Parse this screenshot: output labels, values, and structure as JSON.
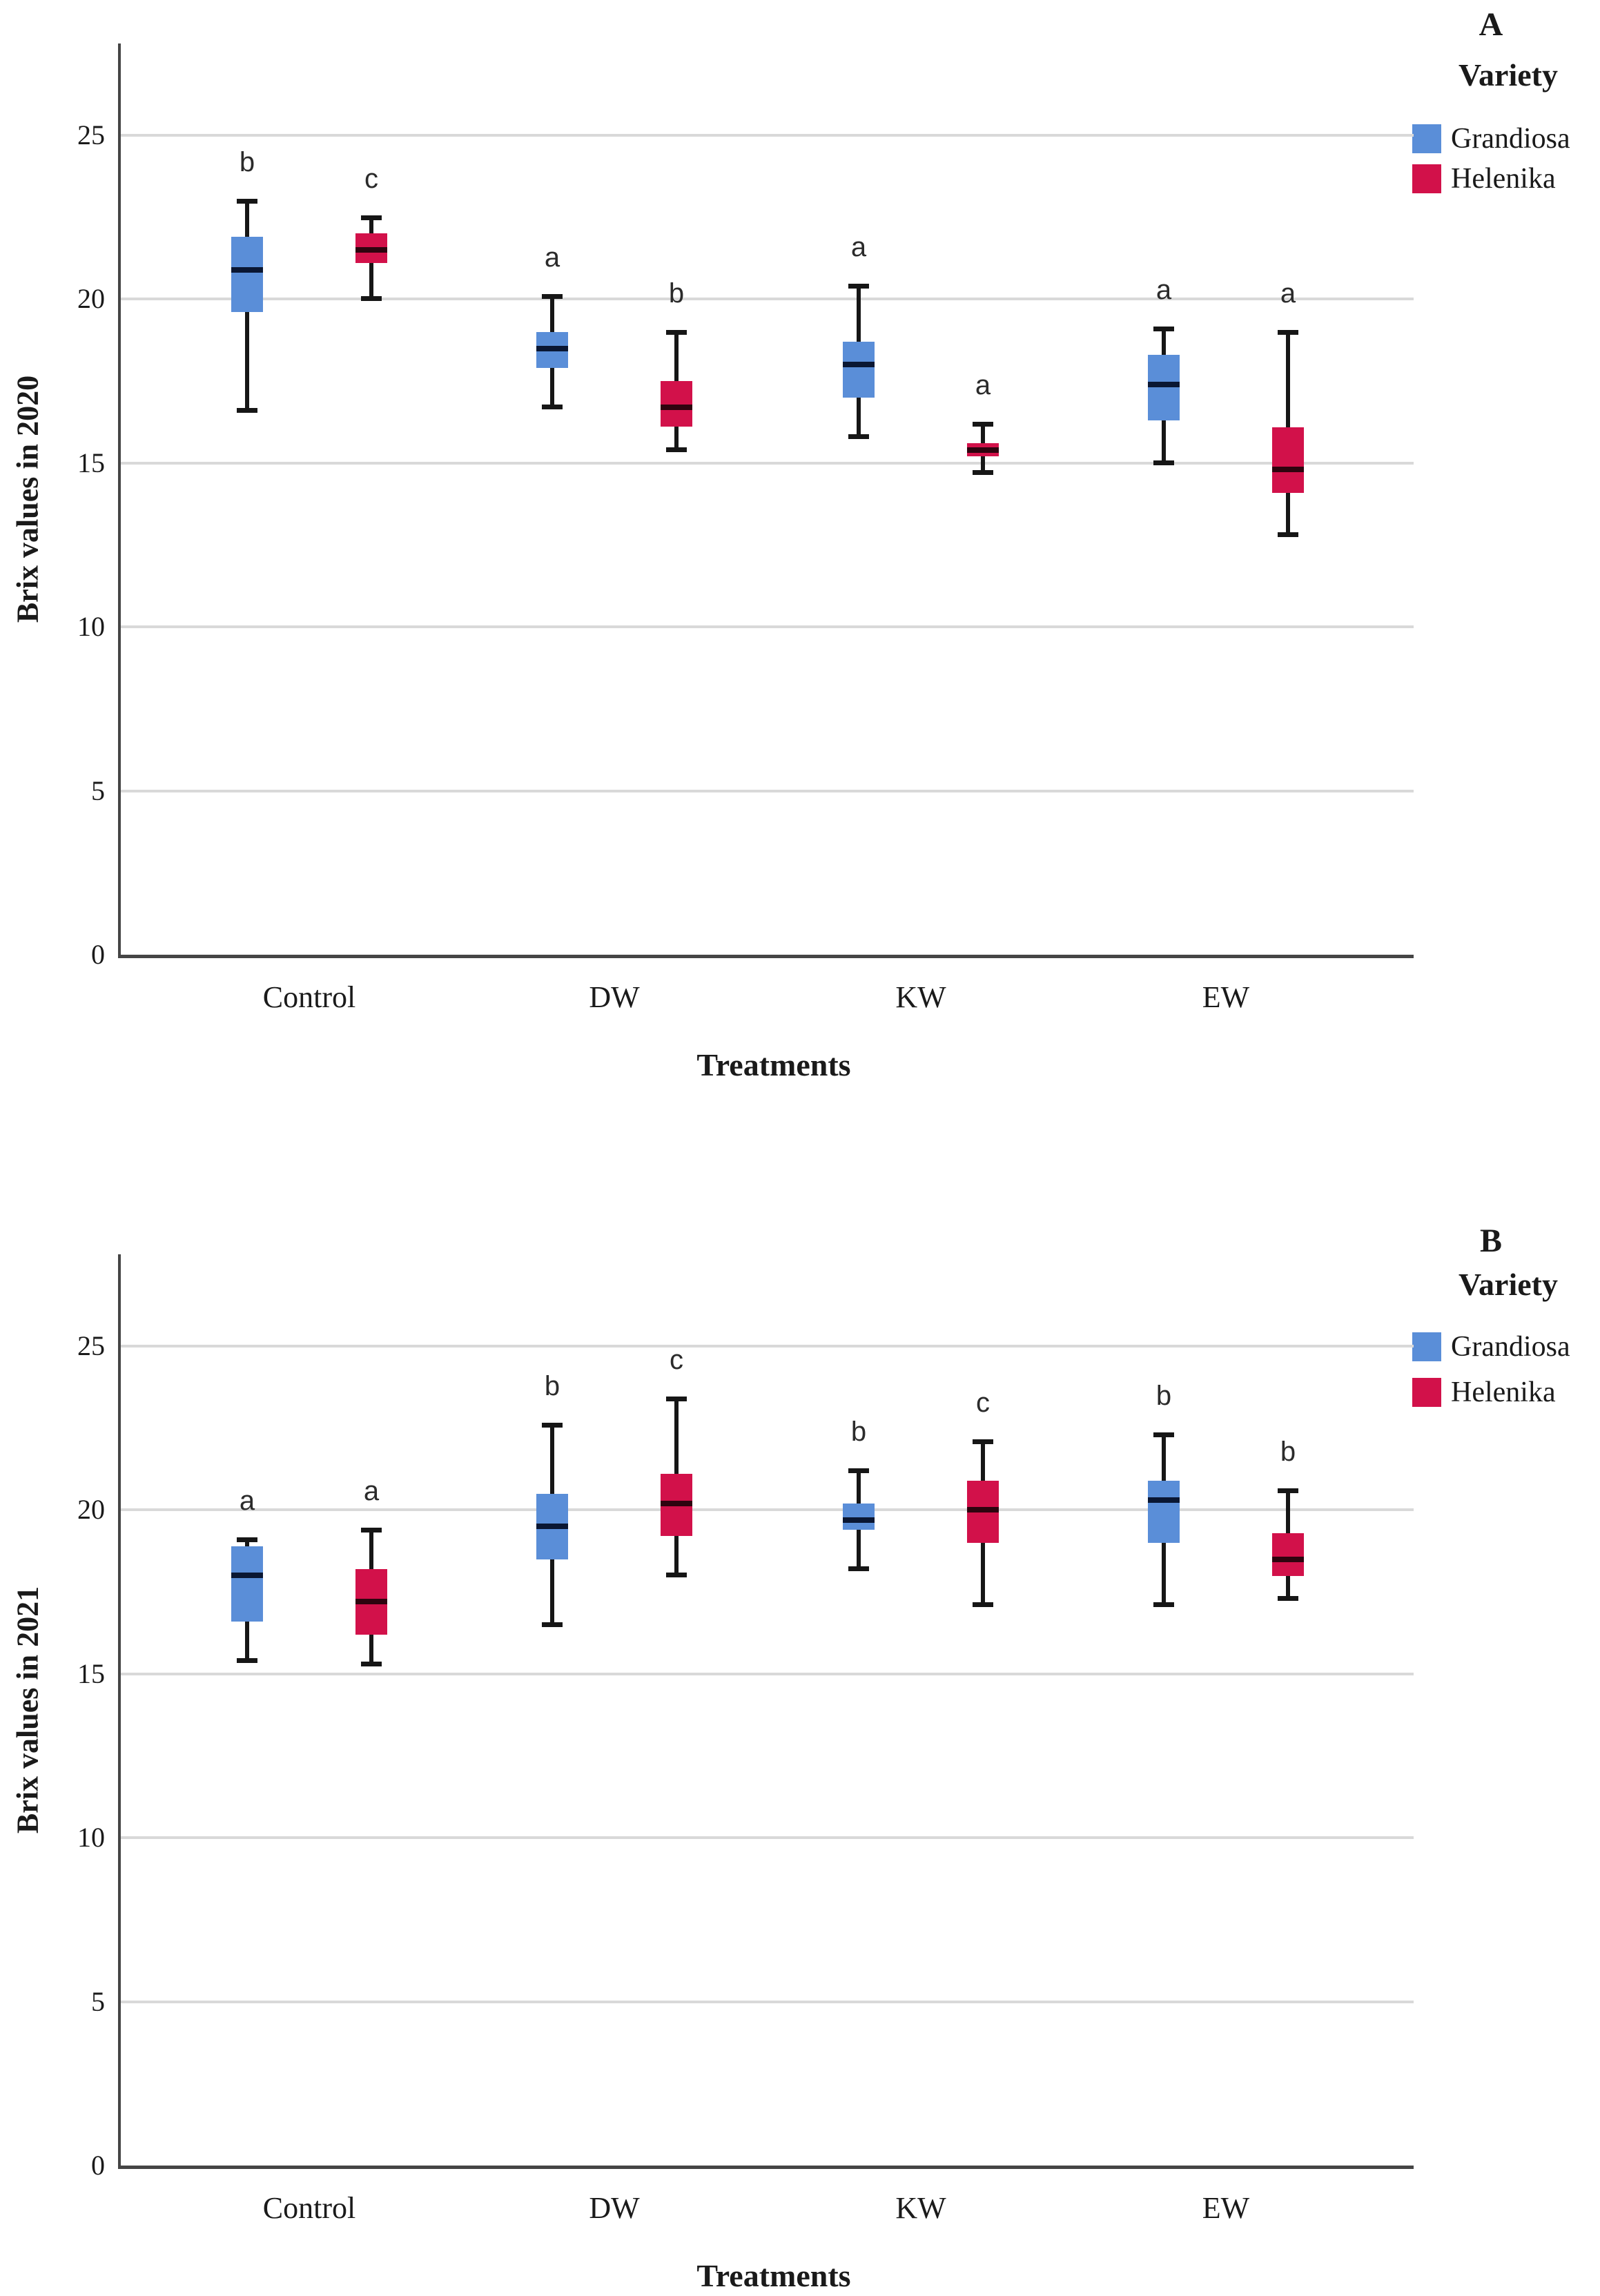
{
  "figure": {
    "background": "#ffffff"
  },
  "colors": {
    "grandiosa": "#5a8ed8",
    "helenika": "#d2114a",
    "median_on_grandiosa": "#0a1733",
    "median_on_helenika": "#2e040f",
    "whisker": "#161616",
    "gridline": "#d9d9d9",
    "axis": "#454545",
    "letter_text": "#2b2b2b"
  },
  "chart_data": [
    {
      "type": "boxplot",
      "panel_letter": "A",
      "ylabel": "Brix values in 2020",
      "xlabel": "Treatments",
      "ylim": [
        0,
        27.8
      ],
      "y_ticks": [
        0,
        5,
        10,
        15,
        20,
        25
      ],
      "categories": [
        "Control",
        "DW",
        "KW",
        "EW"
      ],
      "grid": true,
      "legend": {
        "title": "Variety",
        "position": "top-right-outside",
        "items": [
          {
            "label": "Grandiosa"
          },
          {
            "label": "Helenika"
          }
        ]
      },
      "series": [
        {
          "name": "Grandiosa",
          "boxes": [
            {
              "category": "Control",
              "whislo": 16.6,
              "q1": 19.6,
              "med": 20.9,
              "q3": 21.9,
              "whishi": 23.0,
              "letter": "b"
            },
            {
              "category": "DW",
              "whislo": 16.7,
              "q1": 17.9,
              "med": 18.5,
              "q3": 19.0,
              "whishi": 20.1,
              "letter": "a"
            },
            {
              "category": "KW",
              "whislo": 15.8,
              "q1": 17.0,
              "med": 18.0,
              "q3": 18.7,
              "whishi": 20.4,
              "letter": "a"
            },
            {
              "category": "EW",
              "whislo": 15.0,
              "q1": 16.3,
              "med": 17.4,
              "q3": 18.3,
              "whishi": 19.1,
              "letter": "a"
            }
          ]
        },
        {
          "name": "Helenika",
          "boxes": [
            {
              "category": "Control",
              "whislo": 20.0,
              "q1": 21.1,
              "med": 21.5,
              "q3": 22.0,
              "whishi": 22.5,
              "letter": "c"
            },
            {
              "category": "DW",
              "whislo": 15.4,
              "q1": 16.1,
              "med": 16.7,
              "q3": 17.5,
              "whishi": 19.0,
              "letter": "b"
            },
            {
              "category": "KW",
              "whislo": 14.7,
              "q1": 15.2,
              "med": 15.4,
              "q3": 15.6,
              "whishi": 16.2,
              "letter": "a"
            },
            {
              "category": "EW",
              "whislo": 12.8,
              "q1": 14.1,
              "med": 14.8,
              "q3": 16.1,
              "whishi": 19.0,
              "letter": "a"
            }
          ]
        }
      ]
    },
    {
      "type": "boxplot",
      "panel_letter": "B",
      "ylabel": "Brix values in 2021",
      "xlabel": "Treatments",
      "ylim": [
        0,
        27.8
      ],
      "y_ticks": [
        0,
        5,
        10,
        15,
        20,
        25
      ],
      "categories": [
        "Control",
        "DW",
        "KW",
        "EW"
      ],
      "grid": true,
      "legend": {
        "title": "Variety",
        "position": "top-right-outside",
        "items": [
          {
            "label": "Grandiosa"
          },
          {
            "label": "Helenika"
          }
        ]
      },
      "series": [
        {
          "name": "Grandiosa",
          "boxes": [
            {
              "category": "Control",
              "whislo": 15.4,
              "q1": 16.6,
              "med": 18.0,
              "q3": 18.9,
              "whishi": 19.1,
              "letter": "a"
            },
            {
              "category": "DW",
              "whislo": 16.5,
              "q1": 18.5,
              "med": 19.5,
              "q3": 20.5,
              "whishi": 22.6,
              "letter": "b"
            },
            {
              "category": "KW",
              "whislo": 18.2,
              "q1": 19.4,
              "med": 19.7,
              "q3": 20.2,
              "whishi": 21.2,
              "letter": "b"
            },
            {
              "category": "EW",
              "whislo": 17.1,
              "q1": 19.0,
              "med": 20.3,
              "q3": 20.9,
              "whishi": 22.3,
              "letter": "b"
            }
          ]
        },
        {
          "name": "Helenika",
          "boxes": [
            {
              "category": "Control",
              "whislo": 15.3,
              "q1": 16.2,
              "med": 17.2,
              "q3": 18.2,
              "whishi": 19.4,
              "letter": "a"
            },
            {
              "category": "DW",
              "whislo": 18.0,
              "q1": 19.2,
              "med": 20.2,
              "q3": 21.1,
              "whishi": 23.4,
              "letter": "c"
            },
            {
              "category": "KW",
              "whislo": 17.1,
              "q1": 19.0,
              "med": 20.0,
              "q3": 20.9,
              "whishi": 22.1,
              "letter": "c"
            },
            {
              "category": "EW",
              "whislo": 17.3,
              "q1": 18.0,
              "med": 18.5,
              "q3": 19.3,
              "whishi": 20.6,
              "letter": "b"
            }
          ]
        }
      ]
    }
  ]
}
